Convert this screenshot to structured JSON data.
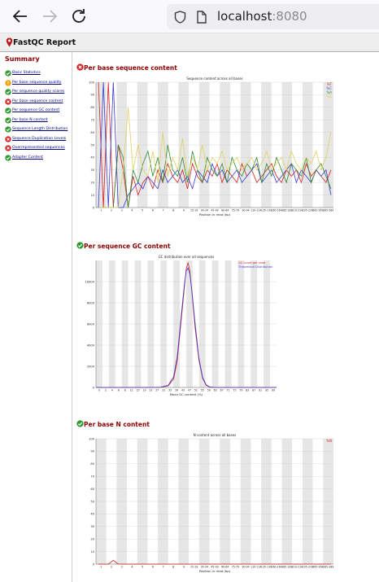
{
  "browser": {
    "url_host": "localhost",
    "url_port": ":8080",
    "icons": [
      "back-arrow-icon",
      "forward-arrow-icon",
      "reload-icon",
      "shield-icon",
      "page-icon"
    ]
  },
  "report": {
    "title": "FastQC Report"
  },
  "summary": {
    "title": "Summary",
    "items": [
      {
        "label": "Basic Statistics",
        "status": "pass"
      },
      {
        "label": "Per base sequence quality",
        "status": "warn"
      },
      {
        "label": "Per sequence quality scores",
        "status": "pass"
      },
      {
        "label": "Per base sequence content",
        "status": "fail"
      },
      {
        "label": "Per sequence GC content",
        "status": "pass"
      },
      {
        "label": "Per base N content",
        "status": "pass"
      },
      {
        "label": "Sequence Length Distribution",
        "status": "pass"
      },
      {
        "label": "Sequence Duplication Levels",
        "status": "fail"
      },
      {
        "label": "Overrepresented sequences",
        "status": "fail"
      },
      {
        "label": "Adapter Content",
        "status": "pass"
      }
    ]
  },
  "colors": {
    "pass": "#2e9a2e",
    "warn": "#f0a000",
    "fail": "#d42020",
    "title": "#8b0000",
    "link": "#000080"
  },
  "sections": [
    {
      "title": "Per base sequence content",
      "status": "fail"
    },
    {
      "title": "Per sequence GC content",
      "status": "pass"
    },
    {
      "title": "Per base N content",
      "status": "pass"
    }
  ],
  "chart_data": [
    {
      "type": "line",
      "title": "Sequence content across all bases",
      "xlabel": "Position in read (bp)",
      "ylabel": "",
      "ylim": [
        0,
        100
      ],
      "yticks": [
        0,
        10,
        20,
        30,
        40,
        50,
        60,
        70,
        80,
        90,
        100
      ],
      "xticks": [
        "1",
        "2",
        "3",
        "4",
        "5",
        "6",
        "7",
        "8",
        "9",
        "15-19",
        "30-34",
        "45-49",
        "60-64",
        "75-79",
        "90-94",
        "110-114",
        "135-139",
        "160-164",
        "185-189",
        "210-214",
        "235-239",
        "260-264",
        "285-289"
      ],
      "grid": true,
      "legend": "top-right",
      "series": [
        {
          "name": "%T",
          "color": "#d42020",
          "values": [
            100,
            0,
            100,
            0,
            50,
            30,
            0,
            25,
            10,
            20,
            25,
            15,
            30,
            20,
            35,
            25,
            20,
            30,
            15,
            35,
            25,
            20,
            30,
            25,
            35,
            20,
            30,
            25,
            20,
            35,
            25,
            30,
            20,
            25,
            30,
            35,
            25,
            20,
            30,
            25,
            30,
            20,
            35,
            25,
            30,
            25,
            20,
            30
          ]
        },
        {
          "name": "%C",
          "color": "#3a3ad0",
          "values": [
            0,
            100,
            0,
            100,
            0,
            0,
            10,
            15,
            20,
            15,
            25,
            20,
            15,
            30,
            20,
            25,
            30,
            20,
            25,
            15,
            30,
            25,
            20,
            35,
            25,
            30,
            20,
            25,
            30,
            20,
            25,
            30,
            35,
            20,
            25,
            30,
            20,
            25,
            30,
            35,
            20,
            30,
            25,
            20,
            30,
            25,
            30,
            10
          ]
        },
        {
          "name": "%A",
          "color": "#2e8a2e",
          "values": [
            0,
            0,
            0,
            0,
            50,
            40,
            0,
            30,
            20,
            35,
            45,
            25,
            40,
            20,
            50,
            30,
            25,
            40,
            20,
            45,
            30,
            20,
            40,
            30,
            25,
            35,
            20,
            40,
            30,
            25,
            35,
            30,
            40,
            20,
            35,
            25,
            40,
            30,
            20,
            35,
            30,
            25,
            40,
            20,
            30,
            35,
            25,
            15
          ]
        },
        {
          "name": "%G",
          "color": "#e0d060",
          "values": [
            0,
            0,
            0,
            0,
            0,
            30,
            80,
            30,
            50,
            30,
            25,
            45,
            20,
            60,
            25,
            40,
            30,
            55,
            25,
            40,
            30,
            50,
            30,
            40,
            35,
            45,
            30,
            35,
            40,
            30,
            35,
            40,
            30,
            35,
            45,
            30,
            35,
            40,
            30,
            45,
            35,
            30,
            40,
            35,
            45,
            30,
            40,
            60
          ]
        }
      ]
    },
    {
      "type": "line",
      "title": "GC distribution over all sequences",
      "xlabel": "Mean GC content (%)",
      "ylabel": "",
      "ylim": [
        0,
        12000
      ],
      "yticks": [
        0,
        2000,
        4000,
        6000,
        8000,
        10000
      ],
      "xticks": [
        "0",
        "2",
        "4",
        "6",
        "8",
        "11",
        "15",
        "19",
        "23",
        "27",
        "31",
        "35",
        "39",
        "43",
        "47",
        "51",
        "55",
        "59",
        "63",
        "67",
        "71",
        "75",
        "79",
        "83",
        "87",
        "91",
        "95",
        "99"
      ],
      "grid": true,
      "legend": "top-right",
      "series": [
        {
          "name": "GC count per read",
          "color": "#d42020",
          "x": [
            0,
            30,
            36,
            40,
            43,
            45,
            47,
            49,
            50,
            51,
            52,
            53,
            55,
            57,
            59,
            61,
            63,
            66,
            100
          ],
          "values": [
            0,
            0,
            20,
            150,
            800,
            2500,
            6000,
            9500,
            11200,
            11800,
            11000,
            9200,
            5500,
            2600,
            900,
            200,
            40,
            0,
            0
          ]
        },
        {
          "name": "Theoretical Distribution",
          "color": "#3a3ad0",
          "x": [
            0,
            30,
            36,
            40,
            43,
            45,
            47,
            49,
            50,
            51,
            52,
            53,
            55,
            57,
            59,
            61,
            63,
            66,
            100
          ],
          "values": [
            0,
            0,
            30,
            200,
            1000,
            2900,
            6400,
            9800,
            11000,
            11300,
            10700,
            9300,
            5900,
            2800,
            1000,
            250,
            50,
            0,
            0
          ]
        }
      ]
    },
    {
      "type": "line",
      "title": "N content across all bases",
      "xlabel": "Position in read (bp)",
      "ylabel": "",
      "ylim": [
        0,
        100
      ],
      "yticks": [
        0,
        10,
        20,
        30,
        40,
        50,
        60,
        70,
        80,
        90,
        100
      ],
      "xticks": [
        "1",
        "2",
        "3",
        "4",
        "5",
        "6",
        "7",
        "8",
        "9",
        "15-19",
        "30-34",
        "45-49",
        "60-64",
        "75-79",
        "90-94",
        "110-114",
        "135-139",
        "160-164",
        "185-189",
        "210-214",
        "235-239",
        "260-264",
        "285-289"
      ],
      "grid": true,
      "legend": "top-right",
      "series": [
        {
          "name": "%N",
          "color": "#d42020",
          "values": [
            0,
            0,
            0,
            3,
            0,
            0,
            0,
            0,
            0,
            0,
            0,
            0,
            0,
            0,
            0,
            0,
            0,
            0,
            0,
            0,
            0,
            0,
            0,
            0,
            0,
            0,
            0,
            0,
            0,
            0,
            0,
            0,
            0,
            0,
            0,
            0,
            0,
            0,
            0,
            0,
            0,
            0,
            0,
            0,
            0,
            0,
            0,
            0
          ]
        }
      ]
    }
  ]
}
